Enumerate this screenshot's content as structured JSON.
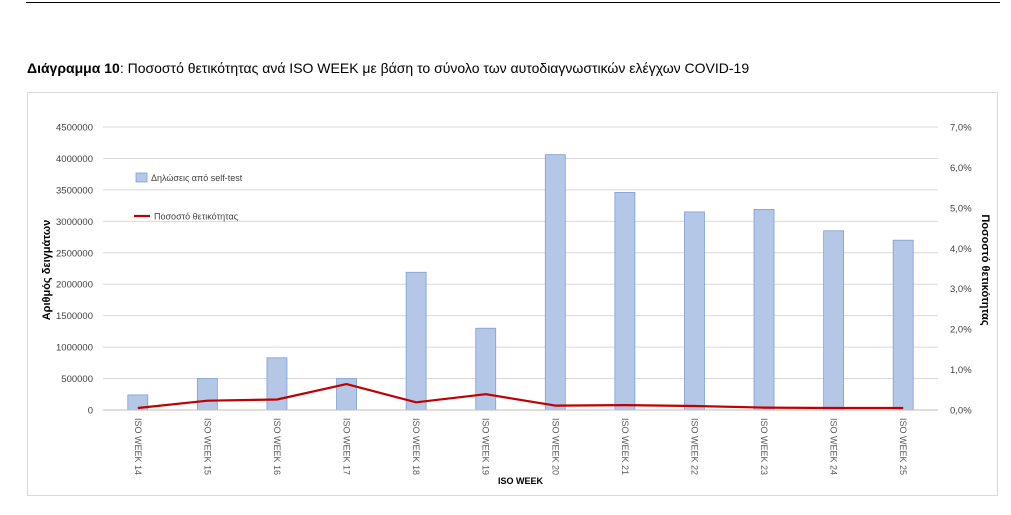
{
  "heading": {
    "label": "Διάγραμμα 10",
    "text": ": Ποσοστό θετικότητας ανά ISO WEEK με βάση το σύνολο των αυτοδιαγνωστικών ελέγχων COVID-19"
  },
  "chart_data": {
    "type": "bar",
    "categories": [
      "ISO WEEK 14",
      "ISO WEEK 15",
      "ISO WEEK 16",
      "ISO WEEK 17",
      "ISO WEEK 18",
      "ISO WEEK 19",
      "ISO WEEK 20",
      "ISO WEEK 21",
      "ISO WEEK 22",
      "ISO WEEK 23",
      "ISO WEEK 24",
      "ISO WEEK 25"
    ],
    "series": [
      {
        "name": "Δηλώσεις από self-test",
        "type": "bar",
        "axis": "left",
        "color": "#b4c7e7",
        "values": [
          240000,
          500000,
          830000,
          500000,
          2190000,
          1300000,
          4060000,
          3460000,
          3150000,
          3190000,
          2850000,
          2700000
        ]
      },
      {
        "name": "Ποσοστό θετικότητας",
        "type": "line",
        "axis": "right",
        "color": "#c00000",
        "values": [
          0.05,
          0.23,
          0.26,
          0.64,
          0.19,
          0.39,
          0.11,
          0.12,
          0.1,
          0.06,
          0.05,
          0.05
        ]
      }
    ],
    "xlabel": "ISO WEEK",
    "ylabel": "Αριθμός δειγμάτων",
    "y2label": "Ποσοστό θετικότητας",
    "ylim": [
      0,
      4500000
    ],
    "yticks": [
      "0",
      "500000",
      "1000000",
      "1500000",
      "2000000",
      "2500000",
      "3000000",
      "3500000",
      "4000000",
      "4500000"
    ],
    "y2lim": [
      0,
      7
    ],
    "y2ticks": [
      "0,0%",
      "1,0%",
      "2,0%",
      "3,0%",
      "4,0%",
      "5,0%",
      "6,0%",
      "7,0%"
    ],
    "grid": true,
    "legend": "top-left"
  }
}
